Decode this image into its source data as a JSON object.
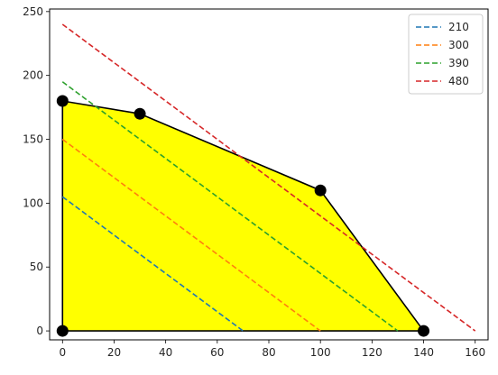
{
  "chart_data": {
    "type": "line",
    "title": "",
    "xlabel": "",
    "ylabel": "",
    "xlim": [
      -5,
      165
    ],
    "ylim": [
      -7,
      252
    ],
    "x_ticks": [
      0,
      20,
      40,
      60,
      80,
      100,
      120,
      140,
      160
    ],
    "y_ticks": [
      0,
      50,
      100,
      150,
      200,
      250
    ],
    "grid": false,
    "legend_position": "top-right",
    "feasible_region": {
      "fill_color": "#ffff00",
      "edge_color": "#000000",
      "vertices": [
        [
          0,
          0
        ],
        [
          0,
          180
        ],
        [
          30,
          170
        ],
        [
          100,
          110
        ],
        [
          140,
          0
        ]
      ]
    },
    "vertex_markers": {
      "color": "#000000",
      "points": [
        [
          0,
          0
        ],
        [
          0,
          180
        ],
        [
          30,
          170
        ],
        [
          100,
          110
        ],
        [
          140,
          0
        ]
      ]
    },
    "series": [
      {
        "name": "210",
        "color": "#1f77b4",
        "style": "dashed",
        "x": [
          0,
          70
        ],
        "y": [
          105,
          0
        ]
      },
      {
        "name": "300",
        "color": "#ff7f0e",
        "style": "dashed",
        "x": [
          0,
          100
        ],
        "y": [
          150,
          0
        ]
      },
      {
        "name": "390",
        "color": "#2ca02c",
        "style": "dashed",
        "x": [
          0,
          130
        ],
        "y": [
          195,
          0
        ]
      },
      {
        "name": "480",
        "color": "#d62728",
        "style": "dashed",
        "x": [
          0,
          160
        ],
        "y": [
          240,
          0
        ]
      }
    ]
  }
}
